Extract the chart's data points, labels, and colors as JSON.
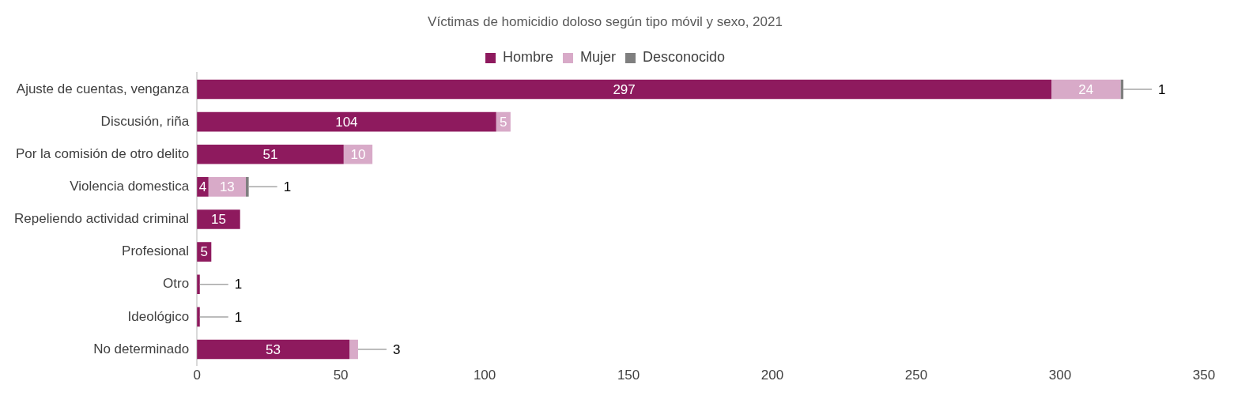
{
  "chart_data": {
    "type": "bar",
    "orientation": "horizontal",
    "stacked": true,
    "title": "Víctimas de homicidio doloso según tipo móvil y sexo, 2021",
    "categories": [
      "Ajuste de cuentas, venganza",
      "Discusión, riña",
      "Por la comisión de otro delito",
      "Violencia domestica",
      "Repeliendo actividad criminal",
      "Profesional",
      "Otro",
      "Ideológico",
      "No determinado"
    ],
    "series": [
      {
        "name": "Hombre",
        "color": "#8e1a5e",
        "values": [
          297,
          104,
          51,
          4,
          15,
          5,
          1,
          1,
          53
        ]
      },
      {
        "name": "Mujer",
        "color": "#d8aac8",
        "values": [
          24,
          5,
          10,
          13,
          null,
          null,
          null,
          null,
          3
        ]
      },
      {
        "name": "Desconocido",
        "color": "#7f7f7f",
        "values": [
          1,
          null,
          null,
          1,
          null,
          null,
          null,
          null,
          null
        ]
      }
    ],
    "xlim": [
      0,
      350
    ],
    "xticks": [
      0,
      50,
      100,
      150,
      200,
      250,
      300,
      350
    ],
    "grid": false,
    "legend": "top",
    "data_labels": true
  }
}
